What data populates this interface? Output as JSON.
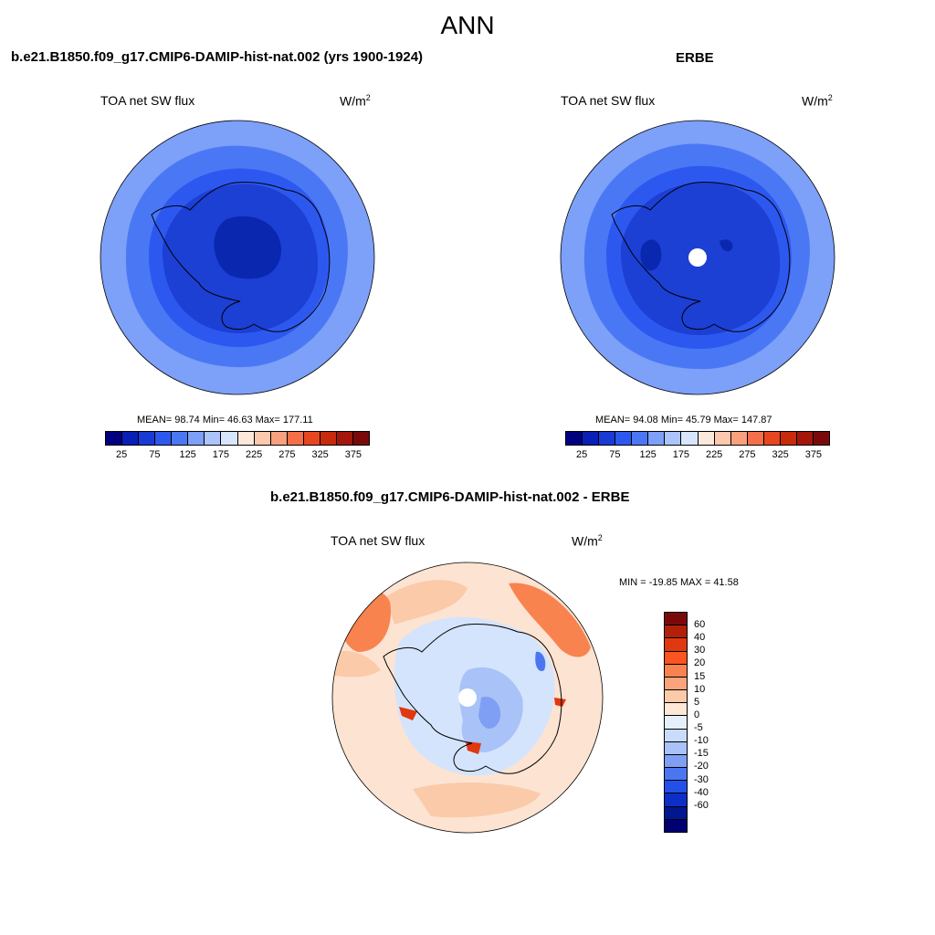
{
  "main_title": "ANN",
  "panels": [
    {
      "title": "b.e21.B1850.f09_g17.CMIP6-DAMIP-hist-nat.002 (yrs 1900-1924)",
      "variable": "TOA net SW flux",
      "units": "W/m",
      "units_exp": "2",
      "stats": "MEAN=  98.74  Min=  46.63  Max= 177.11"
    },
    {
      "title": "ERBE",
      "variable": "TOA net SW flux",
      "units": "W/m",
      "units_exp": "2",
      "stats": "MEAN=  94.08  Min=  45.79  Max= 147.87"
    },
    {
      "title": "b.e21.B1850.f09_g17.CMIP6-DAMIP-hist-nat.002 - ERBE",
      "variable": "TOA net SW flux",
      "units": "W/m",
      "units_exp": "2",
      "stats": "MIN = -19.85 MAX =  41.58"
    }
  ],
  "colorbar_main": {
    "colors": [
      "#000080",
      "#0a1fb5",
      "#1a3ad6",
      "#2d58f0",
      "#4a78f5",
      "#7da0f8",
      "#abc4fb",
      "#d8e6fd",
      "#fde9dc",
      "#fcc8ae",
      "#f9a07e",
      "#f57048",
      "#e8461e",
      "#c82a0c",
      "#a5160a",
      "#7a0a0a"
    ],
    "tick_labels": [
      "25",
      "75",
      "125",
      "175",
      "225",
      "275",
      "325",
      "375"
    ]
  },
  "colorbar_diff": {
    "colors": [
      "#7a0a0a",
      "#b3200a",
      "#e0380f",
      "#fa5420",
      "#f9834f",
      "#f9a47c",
      "#fbcaa8",
      "#fde8d8",
      "#e6f0fd",
      "#c9dcfb",
      "#a9c2f8",
      "#7f9ff4",
      "#4c76f0",
      "#2350e8",
      "#0d2fc7",
      "#00188f",
      "#000070"
    ],
    "tick_labels": [
      "60",
      "40",
      "30",
      "20",
      "15",
      "10",
      "5",
      "0",
      "-5",
      "-10",
      "-15",
      "-20",
      "-30",
      "-40",
      "-60"
    ]
  },
  "map_colors": {
    "deep": "#1c3fd4",
    "mid": "#2d58f0",
    "light": "#4a78f5",
    "lighter": "#7da0f8",
    "core": "#0a27b0",
    "land_outline": "#000000",
    "diff_base": "#fde3d2",
    "diff_blue_light": "#d4e4fc",
    "diff_blue": "#a9c2f8",
    "diff_blue_mid": "#7f9ff4",
    "diff_orange": "#f9834f",
    "diff_orange_light": "#fbcaa8"
  }
}
